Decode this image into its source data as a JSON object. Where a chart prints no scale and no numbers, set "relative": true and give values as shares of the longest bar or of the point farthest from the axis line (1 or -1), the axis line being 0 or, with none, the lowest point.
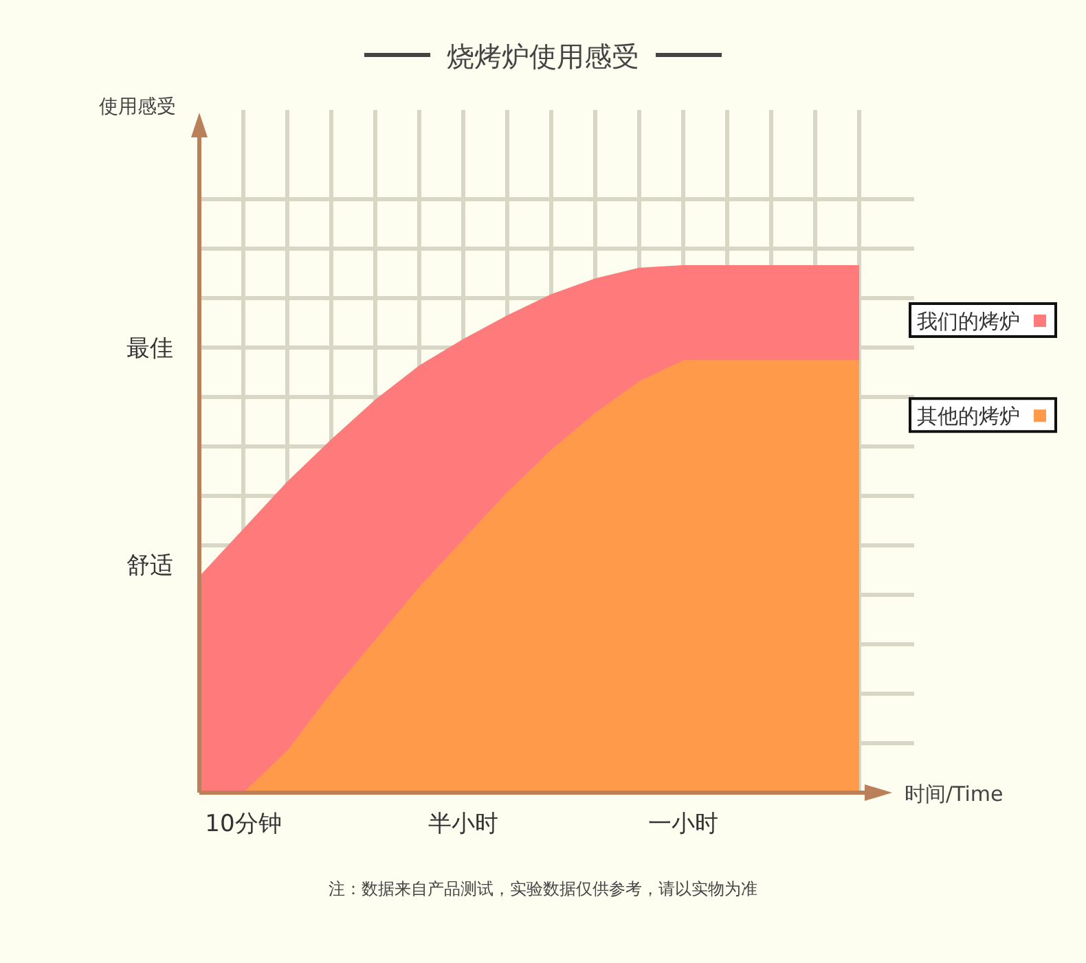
{
  "chart_data": {
    "type": "area",
    "title": "烧烤炉使用感受",
    "xlabel": "时间/Time",
    "relative": true,
    "categories": [
      null,
      "10分钟",
      null,
      null,
      null,
      null,
      "半小时",
      null,
      null,
      null,
      null,
      "一小时",
      null,
      null,
      null,
      null
    ],
    "grid": true,
    "legend": "right",
    "series": [
      {
        "name": "我们的烤炉",
        "color": "#ff7b7b",
        "values": [
          0.41,
          0.5,
          0.59,
          0.67,
          0.745,
          0.81,
          0.86,
          0.905,
          0.945,
          0.975,
          0.995,
          1,
          1,
          1,
          1,
          1
        ]
      },
      {
        "name": "其他的烤炉",
        "color": "#ff9a4a",
        "values": [
          null,
          0,
          0.08,
          0.19,
          0.29,
          0.39,
          0.48,
          0.57,
          0.65,
          0.72,
          0.78,
          0.82,
          0.82,
          0.82,
          0.82,
          0.82
        ]
      }
    ],
    "annotations": [
      "使用感受",
      "舒适",
      "最佳",
      "注：数据来自产品测试，实验数据仅供参考，请以实物为准"
    ]
  }
}
